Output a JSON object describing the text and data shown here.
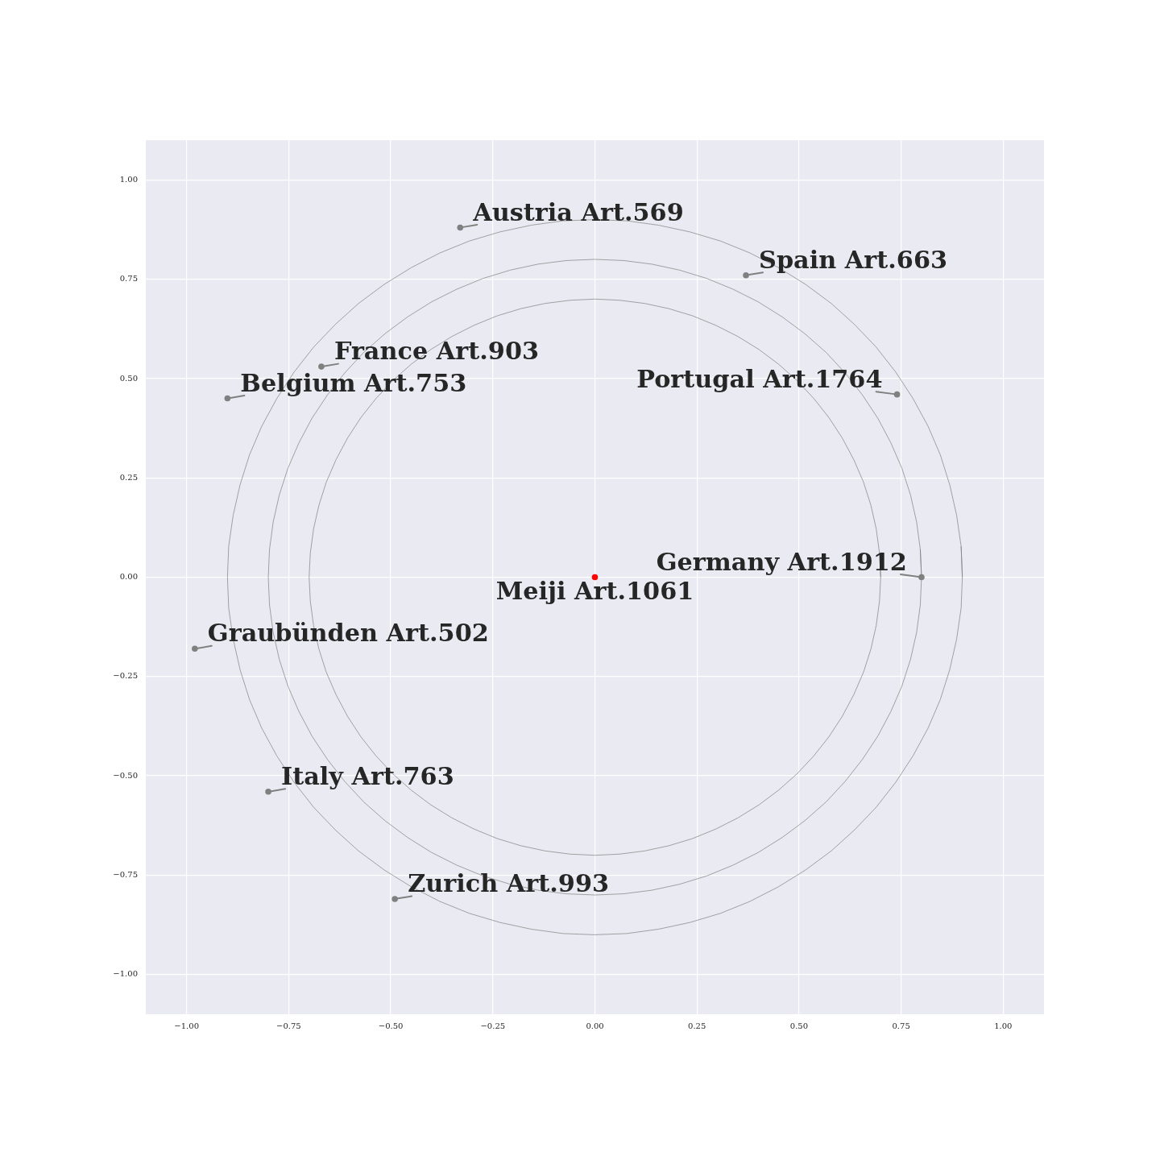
{
  "chart_data": {
    "type": "scatter",
    "series": [
      {
        "type": "line",
        "marker": "none",
        "color": "#808080",
        "x": [
          0.7,
          0.697,
          0.689,
          0.676,
          0.658,
          0.634,
          0.606,
          0.573,
          0.536,
          0.495,
          0.45,
          0.402,
          0.35,
          0.296,
          0.239,
          0.181,
          0.122,
          0.061,
          0,
          -0.061,
          -0.122,
          -0.181,
          -0.239,
          -0.296,
          -0.35,
          -0.402,
          -0.45,
          -0.495,
          -0.536,
          -0.573,
          -0.606,
          -0.634,
          -0.658,
          -0.676,
          -0.689,
          -0.697,
          -0.7,
          -0.697,
          -0.689,
          -0.676,
          -0.658,
          -0.634,
          -0.606,
          -0.573,
          -0.536,
          -0.495,
          -0.45,
          -0.402,
          -0.35,
          -0.296,
          -0.239,
          -0.181,
          -0.122,
          -0.061,
          0,
          0.061,
          0.122,
          0.181,
          0.239,
          0.296,
          0.35,
          0.402,
          0.45,
          0.495,
          0.536,
          0.573,
          0.606,
          0.634,
          0.658,
          0.676,
          0.689,
          0.697,
          0.7,
          0.697
        ],
        "values": [
          0,
          0.061,
          0.122,
          0.181,
          0.239,
          0.296,
          0.35,
          0.402,
          0.45,
          0.495,
          0.536,
          0.573,
          0.606,
          0.634,
          0.658,
          0.676,
          0.689,
          0.697,
          0.7,
          0.697,
          0.689,
          0.676,
          0.658,
          0.634,
          0.606,
          0.573,
          0.536,
          0.495,
          0.45,
          0.402,
          0.35,
          0.296,
          0.239,
          0.181,
          0.122,
          0.061,
          0,
          -0.061,
          -0.122,
          -0.181,
          -0.239,
          -0.296,
          -0.35,
          -0.402,
          -0.45,
          -0.495,
          -0.536,
          -0.573,
          -0.606,
          -0.634,
          -0.658,
          -0.676,
          -0.689,
          -0.697,
          -0.7,
          -0.697,
          -0.689,
          -0.676,
          -0.658,
          -0.634,
          -0.606,
          -0.573,
          -0.536,
          -0.495,
          -0.45,
          -0.402,
          -0.35,
          -0.296,
          -0.239,
          -0.181,
          -0.122,
          -0.061,
          0,
          0.061
        ]
      },
      {
        "type": "line",
        "marker": "none",
        "color": "#808080",
        "x": [
          0.8,
          0.797,
          0.788,
          0.773,
          0.752,
          0.725,
          0.693,
          0.655,
          0.613,
          0.566,
          0.514,
          0.459,
          0.4,
          0.338,
          0.274,
          0.207,
          0.139,
          0.07,
          0,
          -0.07,
          -0.139,
          -0.207,
          -0.274,
          -0.338,
          -0.4,
          -0.459,
          -0.514,
          -0.566,
          -0.613,
          -0.655,
          -0.693,
          -0.725,
          -0.752,
          -0.773,
          -0.788,
          -0.797,
          -0.8,
          -0.797,
          -0.788,
          -0.773,
          -0.752,
          -0.725,
          -0.693,
          -0.655,
          -0.613,
          -0.566,
          -0.514,
          -0.459,
          -0.4,
          -0.338,
          -0.274,
          -0.207,
          -0.139,
          -0.07,
          0,
          0.07,
          0.139,
          0.207,
          0.274,
          0.338,
          0.4,
          0.459,
          0.514,
          0.566,
          0.613,
          0.655,
          0.693,
          0.725,
          0.752,
          0.773,
          0.788,
          0.797,
          0.8,
          0.797
        ],
        "values": [
          0,
          0.07,
          0.139,
          0.207,
          0.274,
          0.338,
          0.4,
          0.459,
          0.514,
          0.566,
          0.613,
          0.655,
          0.693,
          0.725,
          0.752,
          0.773,
          0.788,
          0.797,
          0.8,
          0.797,
          0.788,
          0.773,
          0.752,
          0.725,
          0.693,
          0.655,
          0.613,
          0.566,
          0.514,
          0.459,
          0.4,
          0.338,
          0.274,
          0.207,
          0.139,
          0.07,
          0,
          -0.07,
          -0.139,
          -0.207,
          -0.274,
          -0.338,
          -0.4,
          -0.459,
          -0.514,
          -0.566,
          -0.613,
          -0.655,
          -0.693,
          -0.725,
          -0.752,
          -0.773,
          -0.788,
          -0.797,
          -0.8,
          -0.797,
          -0.788,
          -0.773,
          -0.752,
          -0.725,
          -0.693,
          -0.655,
          -0.613,
          -0.566,
          -0.514,
          -0.459,
          -0.4,
          -0.338,
          -0.274,
          -0.207,
          -0.139,
          -0.07,
          0,
          0.07
        ]
      },
      {
        "type": "line",
        "marker": "none",
        "color": "#808080",
        "x": [
          0.9,
          0.897,
          0.886,
          0.869,
          0.846,
          0.816,
          0.779,
          0.737,
          0.689,
          0.636,
          0.579,
          0.516,
          0.45,
          0.38,
          0.308,
          0.233,
          0.156,
          0.078,
          0,
          -0.078,
          -0.156,
          -0.233,
          -0.308,
          -0.38,
          -0.45,
          -0.516,
          -0.579,
          -0.636,
          -0.689,
          -0.737,
          -0.779,
          -0.816,
          -0.846,
          -0.869,
          -0.886,
          -0.897,
          -0.9,
          -0.897,
          -0.886,
          -0.869,
          -0.846,
          -0.816,
          -0.779,
          -0.737,
          -0.689,
          -0.636,
          -0.579,
          -0.516,
          -0.45,
          -0.38,
          -0.308,
          -0.233,
          -0.156,
          -0.078,
          0,
          0.078,
          0.156,
          0.233,
          0.308,
          0.38,
          0.45,
          0.516,
          0.579,
          0.636,
          0.689,
          0.737,
          0.779,
          0.816,
          0.846,
          0.869,
          0.886,
          0.897,
          0.9,
          0.897
        ],
        "values": [
          0,
          0.078,
          0.156,
          0.233,
          0.308,
          0.38,
          0.45,
          0.516,
          0.579,
          0.636,
          0.689,
          0.737,
          0.779,
          0.816,
          0.846,
          0.869,
          0.886,
          0.897,
          0.9,
          0.897,
          0.886,
          0.869,
          0.846,
          0.816,
          0.779,
          0.737,
          0.689,
          0.636,
          0.579,
          0.516,
          0.45,
          0.38,
          0.308,
          0.233,
          0.156,
          0.078,
          0,
          -0.078,
          -0.156,
          -0.233,
          -0.308,
          -0.38,
          -0.45,
          -0.516,
          -0.579,
          -0.636,
          -0.689,
          -0.737,
          -0.779,
          -0.816,
          -0.846,
          -0.869,
          -0.886,
          -0.897,
          -0.9,
          -0.897,
          -0.886,
          -0.869,
          -0.846,
          -0.816,
          -0.779,
          -0.737,
          -0.689,
          -0.636,
          -0.579,
          -0.516,
          -0.45,
          -0.38,
          -0.308,
          -0.233,
          -0.156,
          -0.078,
          0,
          0.078
        ]
      },
      {
        "type": "scatter",
        "x": [
          -0.33,
          0.37,
          -0.67,
          -0.9,
          0.74,
          0.8,
          0,
          -0.98,
          -0.8,
          -0.49
        ],
        "values": [
          0.88,
          0.76,
          0.53,
          0.45,
          0.46,
          0,
          0,
          -0.18,
          -0.54,
          -0.81
        ],
        "colors": [
          "#808080",
          "#808080",
          "#808080",
          "#808080",
          "#808080",
          "#808080",
          "#ff0000",
          "#808080",
          "#808080",
          "#808080"
        ]
      }
    ],
    "annotations": [
      {
        "text": "Austria Art.569",
        "x": -0.33,
        "y": 0.88
      },
      {
        "text": "Spain Art.663",
        "x": 0.37,
        "y": 0.76
      },
      {
        "text": "France Art.903",
        "x": -0.67,
        "y": 0.53
      },
      {
        "text": "Belgium Art.753",
        "x": -0.9,
        "y": 0.45
      },
      {
        "text": "Portugal Art.1764",
        "x": 0.74,
        "y": 0.46
      },
      {
        "text": "Germany Art.1912",
        "x": 0.8,
        "y": 0
      },
      {
        "text": "Meiji Art.1061",
        "x": 0,
        "y": 0
      },
      {
        "text": "Graubünden Art.502",
        "x": -0.98,
        "y": -0.18
      },
      {
        "text": "Italy Art.763",
        "x": -0.8,
        "y": -0.54
      },
      {
        "text": "Zurich Art.993",
        "x": -0.49,
        "y": -0.81
      }
    ],
    "xlim": [
      -1.1,
      1.1
    ],
    "ylim": [
      -1.1,
      1.1
    ],
    "xticks": [
      {
        "value": -1,
        "label": "−1.00"
      },
      {
        "value": -0.75,
        "label": "−0.75"
      },
      {
        "value": -0.5,
        "label": "−0.50"
      },
      {
        "value": -0.25,
        "label": "−0.25"
      },
      {
        "value": 0,
        "label": "0.00"
      },
      0.25,
      {
        "value": 0.5,
        "label": "0.50"
      },
      0.75,
      {
        "value": 1,
        "label": "1.00"
      }
    ],
    "yticks": [
      {
        "value": -1,
        "label": "−1.00"
      },
      {
        "value": -0.75,
        "label": "−0.75"
      },
      {
        "value": -0.5,
        "label": "−0.50"
      },
      {
        "value": -0.25,
        "label": "−0.25"
      },
      {
        "value": 0,
        "label": "0.00"
      },
      0.25,
      {
        "value": 0.5,
        "label": "0.50"
      },
      0.75,
      {
        "value": 1,
        "label": "1.00"
      }
    ],
    "grid": true,
    "marker": "circle"
  }
}
